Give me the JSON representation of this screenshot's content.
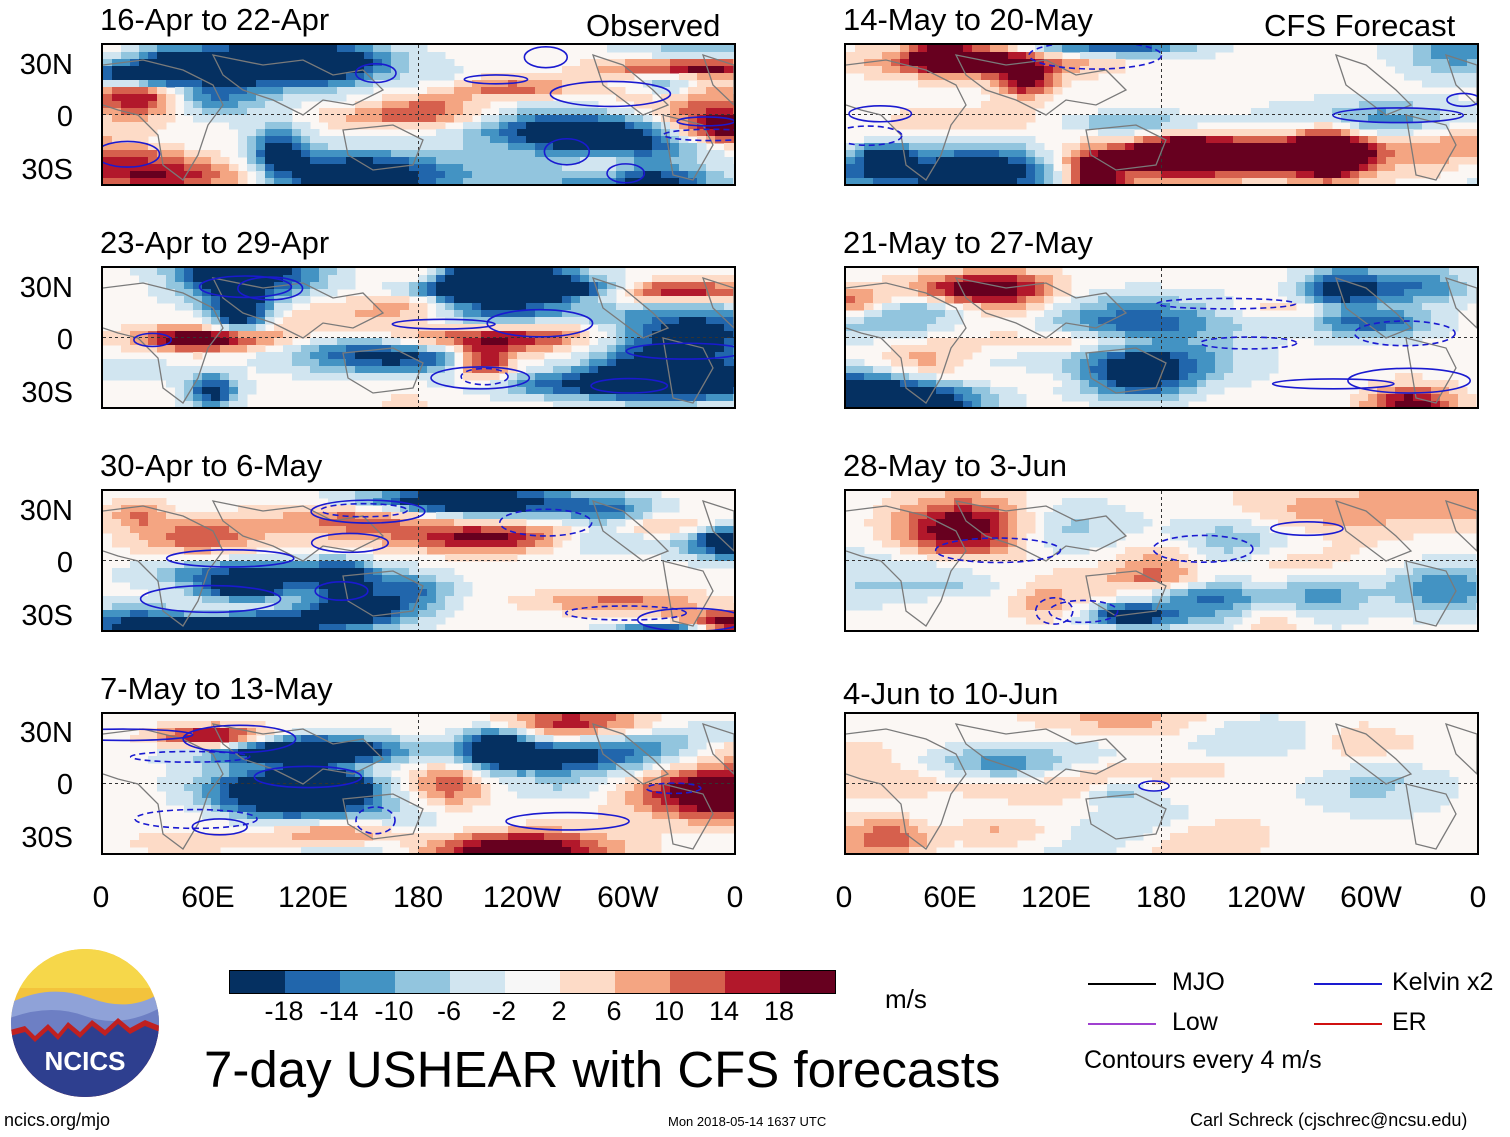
{
  "header": {
    "observed_label": "Observed",
    "forecast_label": "CFS Forecast"
  },
  "panels": [
    {
      "title": "16-Apr to 22-Apr",
      "kind": "observed"
    },
    {
      "title": "23-Apr to 29-Apr",
      "kind": "observed"
    },
    {
      "title": "30-Apr to 6-May",
      "kind": "observed"
    },
    {
      "title": "7-May to 13-May",
      "kind": "observed"
    },
    {
      "title": "14-May to 20-May",
      "kind": "forecast"
    },
    {
      "title": "21-May to 27-May",
      "kind": "forecast"
    },
    {
      "title": "28-May to 3-Jun",
      "kind": "forecast"
    },
    {
      "title": "4-Jun to 10-Jun",
      "kind": "forecast"
    }
  ],
  "latitude_labels": [
    "30N",
    "0",
    "30S"
  ],
  "longitude_labels": [
    "0",
    "60E",
    "120E",
    "180",
    "120W",
    "60W",
    "0"
  ],
  "colorbar": {
    "colors": [
      "#053061",
      "#2166ac",
      "#4393c3",
      "#92c5de",
      "#d1e5f0",
      "#f7f7f7",
      "#fddbc7",
      "#f4a582",
      "#d6604d",
      "#b2182b",
      "#67001f"
    ],
    "tick_labels": [
      "-18",
      "-14",
      "-10",
      "-6",
      "-2",
      "2",
      "6",
      "10",
      "14",
      "18"
    ],
    "units": "m/s"
  },
  "title": "7-day USHEAR with CFS forecasts",
  "legend": {
    "items": [
      {
        "label": "MJO",
        "color": "#000000"
      },
      {
        "label": "Low",
        "color": "#a040d0"
      },
      {
        "label": "Kelvin x2",
        "color": "#1a1ad0"
      },
      {
        "label": "ER",
        "color": "#d01010"
      }
    ],
    "contour_note": "Contours every 4 m/s"
  },
  "logo": {
    "text": "NCICS"
  },
  "footer": {
    "url": "ncics.org/mjo",
    "timestamp": "Mon 2018-05-14 1637 UTC",
    "credit": "Carl Schreck (cjschrec@ncsu.edu)"
  }
}
